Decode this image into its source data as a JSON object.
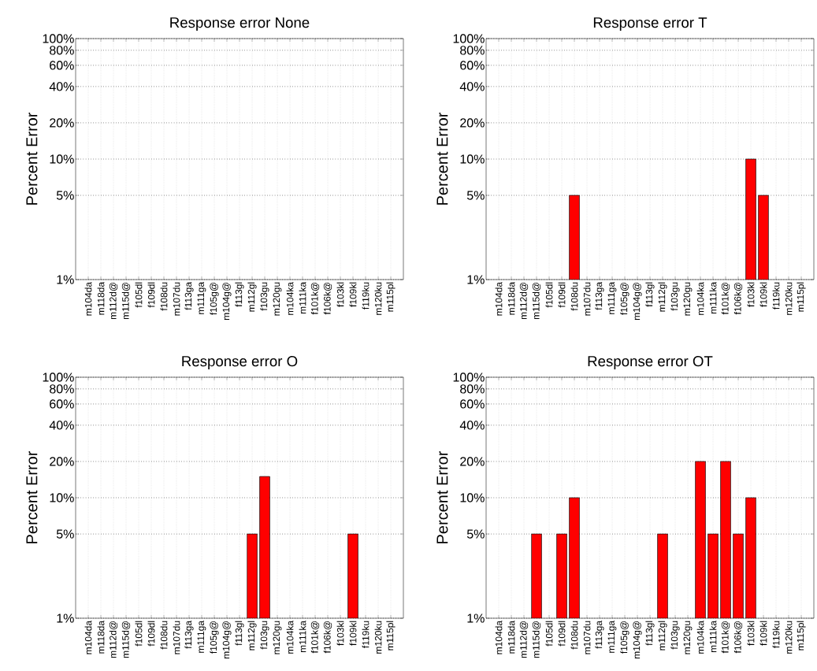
{
  "chart_data": [
    {
      "type": "bar",
      "title": "Response error None",
      "ylabel": "Percent Error",
      "log": "y",
      "grid": true,
      "color": "#ff0000",
      "categories": [
        "m104da",
        "m118da",
        "m112d@",
        "m115d@",
        "f105dl",
        "f109dl",
        "f108du",
        "m107du",
        "f113ga",
        "m111ga",
        "f105g@",
        "m104g@",
        "f113gl",
        "m112gl",
        "f103gu",
        "m120gu",
        "m104ka",
        "m111ka",
        "f101k@",
        "f106k@",
        "f103kl",
        "f109kl",
        "f119ku",
        "m120ku",
        "m115pl"
      ],
      "values": [
        null,
        null,
        null,
        null,
        null,
        null,
        null,
        null,
        null,
        null,
        null,
        null,
        null,
        null,
        null,
        null,
        null,
        null,
        null,
        null,
        null,
        null,
        null,
        null,
        null
      ],
      "ylim": [
        1,
        100
      ],
      "yticks": [
        {
          "value": 1,
          "label": "1%"
        },
        {
          "value": 5,
          "label": "5%"
        },
        {
          "value": 10,
          "label": "10%"
        },
        {
          "value": 20,
          "label": "20%"
        },
        {
          "value": 40,
          "label": "40%"
        },
        {
          "value": 60,
          "label": "60%"
        },
        {
          "value": 80,
          "label": "80%"
        },
        {
          "value": 100,
          "label": "100%"
        }
      ]
    },
    {
      "type": "bar",
      "title": "Response error T",
      "ylabel": "Percent Error",
      "log": "y",
      "grid": true,
      "color": "#ff0000",
      "categories": [
        "m104da",
        "m118da",
        "m112d@",
        "m115d@",
        "f105dl",
        "f109dl",
        "f108du",
        "m107du",
        "f113ga",
        "m111ga",
        "f105g@",
        "m104g@",
        "f113gl",
        "m112gl",
        "f103gu",
        "m120gu",
        "m104ka",
        "m111ka",
        "f101k@",
        "f106k@",
        "f103kl",
        "f109kl",
        "f119ku",
        "m120ku",
        "m115pl"
      ],
      "values": [
        null,
        null,
        null,
        null,
        null,
        null,
        5,
        null,
        null,
        null,
        null,
        null,
        null,
        null,
        null,
        null,
        null,
        null,
        null,
        null,
        10,
        5,
        null,
        null,
        null
      ],
      "ylim": [
        1,
        100
      ],
      "yticks": [
        {
          "value": 1,
          "label": "1%"
        },
        {
          "value": 5,
          "label": "5%"
        },
        {
          "value": 10,
          "label": "10%"
        },
        {
          "value": 20,
          "label": "20%"
        },
        {
          "value": 40,
          "label": "40%"
        },
        {
          "value": 60,
          "label": "60%"
        },
        {
          "value": 80,
          "label": "80%"
        },
        {
          "value": 100,
          "label": "100%"
        }
      ]
    },
    {
      "type": "bar",
      "title": "Response error O",
      "ylabel": "Percent Error",
      "log": "y",
      "grid": true,
      "color": "#ff0000",
      "categories": [
        "m104da",
        "m118da",
        "m112d@",
        "m115d@",
        "f105dl",
        "f109dl",
        "f108du",
        "m107du",
        "f113ga",
        "m111ga",
        "f105g@",
        "m104g@",
        "f113gl",
        "m112gl",
        "f103gu",
        "m120gu",
        "m104ka",
        "m111ka",
        "f101k@",
        "f106k@",
        "f103kl",
        "f109kl",
        "f119ku",
        "m120ku",
        "m115pl"
      ],
      "values": [
        null,
        null,
        null,
        null,
        null,
        null,
        null,
        null,
        null,
        null,
        null,
        null,
        null,
        5,
        15,
        null,
        null,
        null,
        null,
        null,
        null,
        5,
        null,
        null,
        null
      ],
      "ylim": [
        1,
        100
      ],
      "yticks": [
        {
          "value": 1,
          "label": "1%"
        },
        {
          "value": 5,
          "label": "5%"
        },
        {
          "value": 10,
          "label": "10%"
        },
        {
          "value": 20,
          "label": "20%"
        },
        {
          "value": 40,
          "label": "40%"
        },
        {
          "value": 60,
          "label": "60%"
        },
        {
          "value": 80,
          "label": "80%"
        },
        {
          "value": 100,
          "label": "100%"
        }
      ]
    },
    {
      "type": "bar",
      "title": "Response error OT",
      "ylabel": "Percent Error",
      "log": "y",
      "grid": true,
      "color": "#ff0000",
      "categories": [
        "m104da",
        "m118da",
        "m112d@",
        "m115d@",
        "f105dl",
        "f109dl",
        "f108du",
        "m107du",
        "f113ga",
        "m111ga",
        "f105g@",
        "m104g@",
        "f113gl",
        "m112gl",
        "f103gu",
        "m120gu",
        "m104ka",
        "m111ka",
        "f101k@",
        "f106k@",
        "f103kl",
        "f109kl",
        "f119ku",
        "m120ku",
        "m115pl"
      ],
      "values": [
        null,
        null,
        null,
        5,
        null,
        5,
        10,
        null,
        null,
        null,
        null,
        null,
        null,
        5,
        null,
        null,
        20,
        5,
        20,
        5,
        10,
        null,
        null,
        null,
        null
      ],
      "ylim": [
        1,
        100
      ],
      "yticks": [
        {
          "value": 1,
          "label": "1%"
        },
        {
          "value": 5,
          "label": "5%"
        },
        {
          "value": 10,
          "label": "10%"
        },
        {
          "value": 20,
          "label": "20%"
        },
        {
          "value": 40,
          "label": "40%"
        },
        {
          "value": 60,
          "label": "60%"
        },
        {
          "value": 80,
          "label": "80%"
        },
        {
          "value": 100,
          "label": "100%"
        }
      ]
    }
  ]
}
